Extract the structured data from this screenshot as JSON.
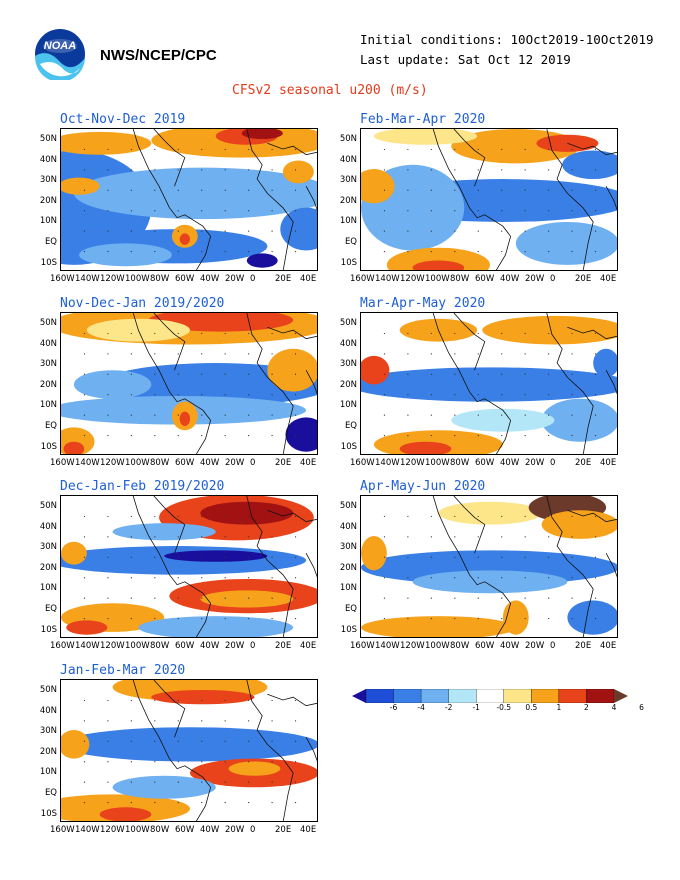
{
  "header": {
    "org": "NWS/NCEP/CPC",
    "initial_conditions": "Initial conditions: 10Oct2019-10Oct2019",
    "last_update": "Last update: Sat Oct 12 2019",
    "title": "CFSv2 seasonal u200 (m/s)",
    "logo_text": "NOAA"
  },
  "axes": {
    "lat_ticks": [
      "50N",
      "40N",
      "30N",
      "20N",
      "10N",
      "EQ",
      "10S"
    ],
    "lon_ticks": [
      "160W",
      "140W",
      "120W",
      "100W",
      "80W",
      "60W",
      "40W",
      "20W",
      "0",
      "20E",
      "40E"
    ]
  },
  "panels": [
    {
      "title": "Oct-Nov-Dec 2019"
    },
    {
      "title": "Feb-Mar-Apr 2020"
    },
    {
      "title": "Nov-Dec-Jan 2019/2020"
    },
    {
      "title": "Mar-Apr-May 2020"
    },
    {
      "title": "Dec-Jan-Feb 2019/2020"
    },
    {
      "title": "Apr-May-Jun 2020"
    },
    {
      "title": "Jan-Feb-Mar 2020"
    }
  ],
  "colorbar": {
    "labels": [
      "-6",
      "-4",
      "-2",
      "-1",
      "-0.5",
      "0.5",
      "1",
      "2",
      "4",
      "6"
    ],
    "colors": [
      "#1a0f9c",
      "#1f4fd8",
      "#3a7fe6",
      "#6fb0f0",
      "#b3e6f7",
      "#ffffff",
      "#fde58a",
      "#f7a21b",
      "#e8431a",
      "#a31212",
      "#6b3a2a"
    ]
  },
  "colors": {
    "title_blue": "#1f5fd6",
    "title_red": "#e23a1a"
  }
}
